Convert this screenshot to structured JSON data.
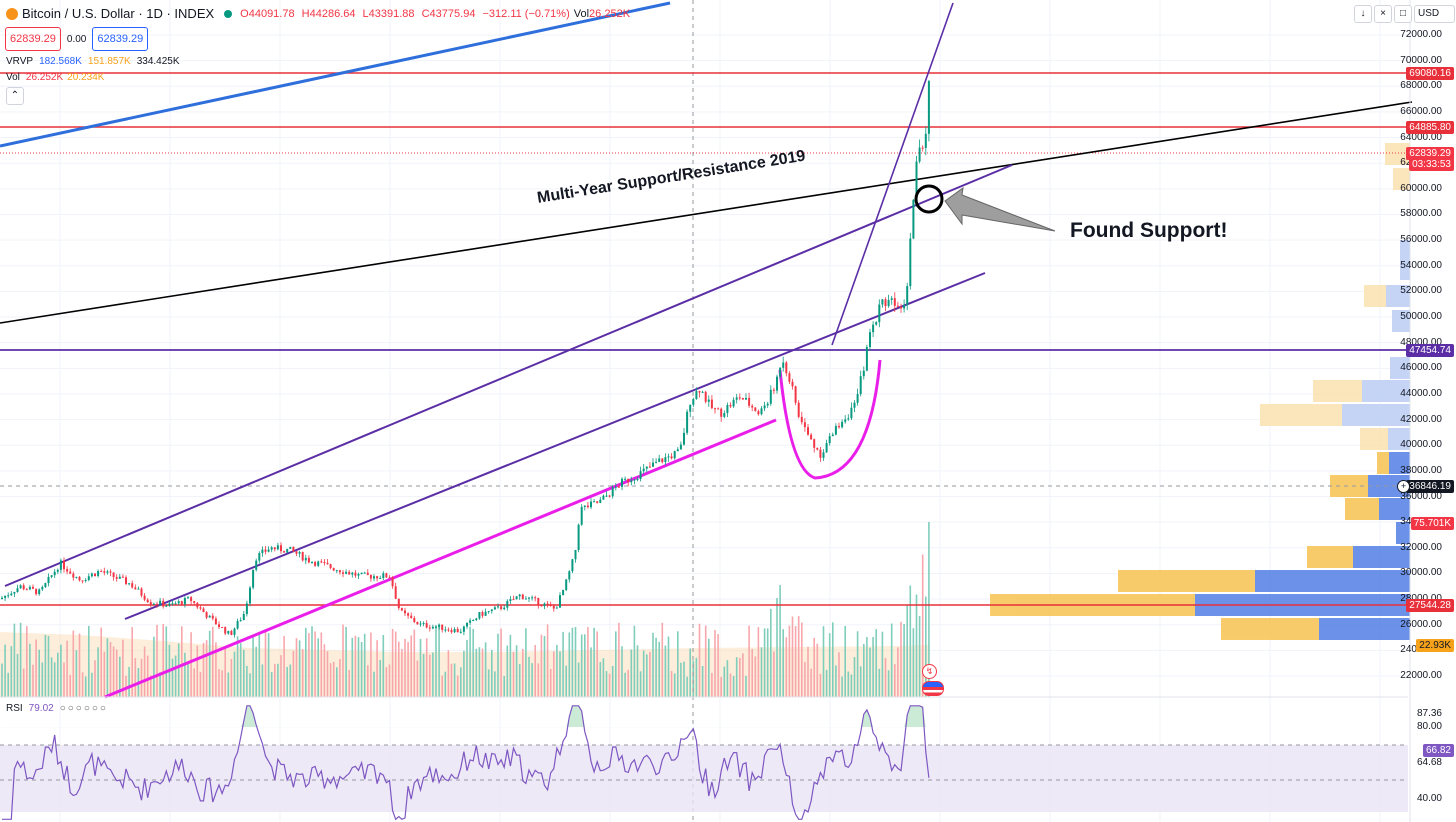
{
  "header": {
    "symbol": "Bitcoin / U.S. Dollar · 1D · INDEX",
    "open": "O44091.78",
    "high": "H44286.64",
    "low": "L43391.88",
    "close": "C43775.94",
    "change": "−312.11 (−0.71%)",
    "vol_label": "Vol",
    "vol_value": "26.252K",
    "sell_price": "62839.29",
    "spread": "0.00",
    "buy_price": "62839.29",
    "currency": "USD"
  },
  "indicators": {
    "vrvp_label": "VRVP",
    "vrvp_v1": "182.568K",
    "vrvp_v2": "151.857K",
    "vrvp_v3": "334.425K",
    "vol_label": "Vol",
    "vol_v1": "26.252K",
    "vol_v2": "20.234K",
    "rsi_label": "RSI",
    "rsi_value": "79.02"
  },
  "annotations": {
    "trend_label": "Multi-Year Support/Resistance 2019",
    "callout": "Found Support!"
  },
  "price_axis": {
    "labels": [
      "72000.00",
      "70000.00",
      "68000.00",
      "66000.00",
      "64000.00",
      "62000.00",
      "60000.00",
      "58000.00",
      "56000.00",
      "54000.00",
      "52000.00",
      "50000.00",
      "48000.00",
      "46000.00",
      "44000.00",
      "42000.00",
      "40000.00",
      "38000.00",
      "36000.00",
      "34000.00",
      "32000.00",
      "30000.00",
      "28000.00",
      "26000.00",
      "24000.00",
      "22000.00"
    ],
    "tags": {
      "level_1": "69080.16",
      "level_2": "64885.80",
      "current": "62839.29",
      "countdown": "03:33:53",
      "level_3": "47454.74",
      "crosshair": "36846.19",
      "volume": "75.701K",
      "level_4": "27544.28",
      "volume_ma": "22.93K"
    }
  },
  "rsi_axis": {
    "labels": [
      "87.36",
      "80.00",
      "64.68",
      "40.00"
    ],
    "current": "66.82"
  },
  "colors": {
    "up": "#089981",
    "down": "#f23645",
    "purple": "#5b2ea6",
    "magenta": "#e91ee9",
    "blue_line": "#2e6fdc",
    "red_level": "#e8303a"
  },
  "chart_data": {
    "type": "candlestick",
    "symbol": "Bitcoin / U.S. Dollar",
    "interval": "1D",
    "ylim": [
      21000,
      73500
    ],
    "horizontal_levels": [
      69080.16,
      64885.8,
      47454.74,
      27544.28
    ],
    "current_price": 62839.29,
    "rsi_levels": [
      80.0,
      40.0
    ],
    "rsi_current": 66.82,
    "price_path": [
      [
        0,
        28000
      ],
      [
        20,
        29000
      ],
      [
        40,
        28500
      ],
      [
        60,
        30800
      ],
      [
        80,
        29500
      ],
      [
        100,
        30200
      ],
      [
        130,
        29200
      ],
      [
        150,
        27800
      ],
      [
        170,
        27500
      ],
      [
        190,
        28000
      ],
      [
        210,
        26500
      ],
      [
        230,
        25200
      ],
      [
        245,
        27000
      ],
      [
        255,
        31200
      ],
      [
        270,
        32000
      ],
      [
        290,
        31800
      ],
      [
        310,
        31000
      ],
      [
        330,
        30500
      ],
      [
        360,
        29800
      ],
      [
        390,
        29800
      ],
      [
        400,
        27000
      ],
      [
        420,
        26000
      ],
      [
        440,
        25800
      ],
      [
        460,
        25500
      ],
      [
        480,
        26800
      ],
      [
        500,
        27300
      ],
      [
        520,
        28300
      ],
      [
        540,
        27700
      ],
      [
        555,
        27200
      ],
      [
        565,
        29000
      ],
      [
        575,
        31500
      ],
      [
        580,
        35000
      ],
      [
        600,
        35600
      ],
      [
        620,
        37000
      ],
      [
        640,
        37800
      ],
      [
        660,
        38800
      ],
      [
        680,
        39500
      ],
      [
        690,
        43500
      ],
      [
        700,
        44500
      ],
      [
        710,
        43000
      ],
      [
        720,
        42500
      ],
      [
        740,
        43800
      ],
      [
        760,
        42500
      ],
      [
        775,
        44500
      ],
      [
        782,
        47000
      ],
      [
        790,
        45000
      ],
      [
        800,
        42000
      ],
      [
        810,
        40500
      ],
      [
        820,
        39300
      ],
      [
        830,
        40500
      ],
      [
        840,
        41800
      ],
      [
        855,
        43000
      ],
      [
        862,
        45500
      ],
      [
        870,
        48500
      ],
      [
        880,
        51000
      ],
      [
        890,
        51500
      ],
      [
        900,
        51000
      ],
      [
        906,
        51500
      ],
      [
        910,
        55500
      ],
      [
        915,
        61500
      ],
      [
        920,
        63500
      ],
      [
        926,
        64000
      ],
      [
        929,
        68000
      ],
      [
        931,
        62839
      ]
    ]
  }
}
